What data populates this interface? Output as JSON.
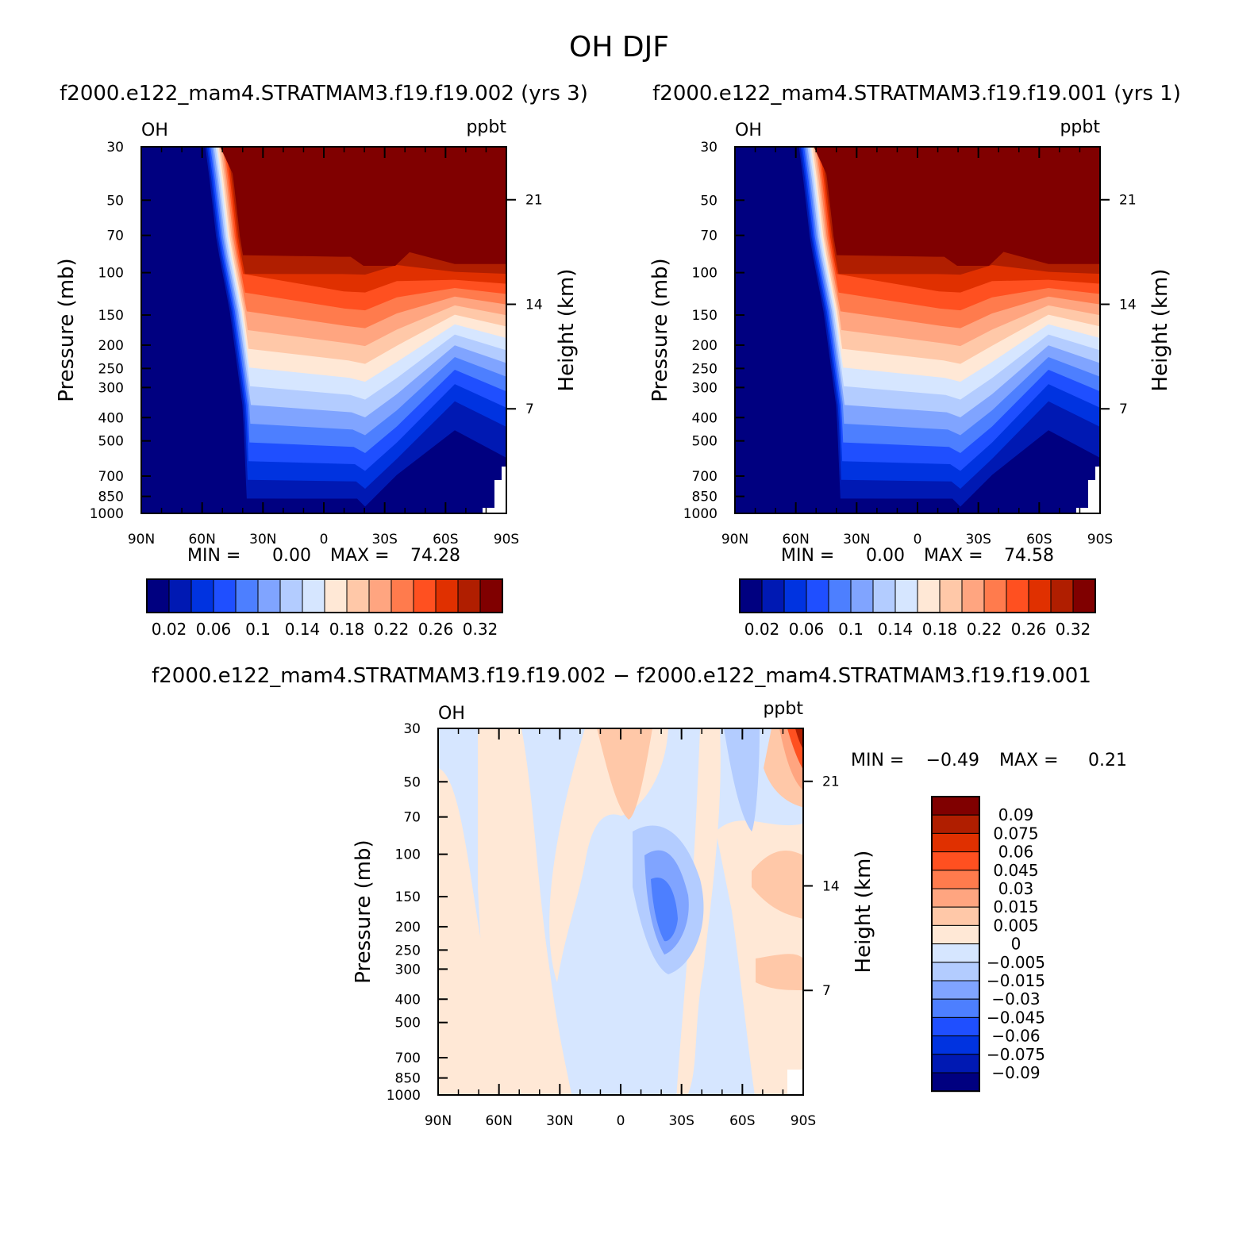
{
  "figure": {
    "main_title": "OH DJF",
    "panel1_title": "f2000.e122_mam4.STRATMAM3.f19.f19.002 (yrs 3)",
    "panel2_title": "f2000.e122_mam4.STRATMAM3.f19.f19.001 (yrs 1)",
    "diff_title": "f2000.e122_mam4.STRATMAM3.f19.f19.002 − f2000.e122_mam4.STRATMAM3.f19.f19.001"
  },
  "chart_data": [
    {
      "type": "heatmap",
      "id": "panel1",
      "variable_label": "OH",
      "units_label": "ppbt",
      "ylabel": "Pressure (mb)",
      "y2label": "Height (km)",
      "x_ticks": [
        "90N",
        "60N",
        "30N",
        "0",
        "30S",
        "60S",
        "90S"
      ],
      "x_values": [
        90,
        60,
        30,
        0,
        -30,
        -60,
        -90
      ],
      "y_ticks": [
        "30",
        "50",
        "70",
        "100",
        "150",
        "200",
        "250",
        "300",
        "400",
        "500",
        "700",
        "850",
        "1000"
      ],
      "y_values": [
        30,
        50,
        70,
        100,
        150,
        200,
        250,
        300,
        400,
        500,
        700,
        850,
        1000
      ],
      "height_ticks": [
        "21",
        "14",
        "7"
      ],
      "height_values": [
        21,
        14,
        7
      ],
      "min_label": "MIN =",
      "min_value": "0.00",
      "max_label": "MAX =",
      "max_value": "74.28",
      "colorbar_labels": [
        "0.02",
        "0.06",
        "0.1",
        "0.14",
        "0.18",
        "0.22",
        "0.26",
        "0.32"
      ]
    },
    {
      "type": "heatmap",
      "id": "panel2",
      "variable_label": "OH",
      "units_label": "ppbt",
      "ylabel": "Pressure (mb)",
      "y2label": "Height (km)",
      "x_ticks": [
        "90N",
        "60N",
        "30N",
        "0",
        "30S",
        "60S",
        "90S"
      ],
      "x_values": [
        90,
        60,
        30,
        0,
        -30,
        -60,
        -90
      ],
      "y_ticks": [
        "30",
        "50",
        "70",
        "100",
        "150",
        "200",
        "250",
        "300",
        "400",
        "500",
        "700",
        "850",
        "1000"
      ],
      "y_values": [
        30,
        50,
        70,
        100,
        150,
        200,
        250,
        300,
        400,
        500,
        700,
        850,
        1000
      ],
      "height_ticks": [
        "21",
        "14",
        "7"
      ],
      "height_values": [
        21,
        14,
        7
      ],
      "min_label": "MIN =",
      "min_value": "0.00",
      "max_label": "MAX =",
      "max_value": "74.58",
      "colorbar_labels": [
        "0.02",
        "0.06",
        "0.1",
        "0.14",
        "0.18",
        "0.22",
        "0.26",
        "0.32"
      ]
    },
    {
      "type": "heatmap",
      "id": "diff",
      "variable_label": "OH",
      "units_label": "ppbt",
      "ylabel": "Pressure (mb)",
      "y2label": "Height (km)",
      "x_ticks": [
        "90N",
        "60N",
        "30N",
        "0",
        "30S",
        "60S",
        "90S"
      ],
      "x_values": [
        90,
        60,
        30,
        0,
        -30,
        -60,
        -90
      ],
      "y_ticks": [
        "30",
        "50",
        "70",
        "100",
        "150",
        "200",
        "250",
        "300",
        "400",
        "500",
        "700",
        "850",
        "1000"
      ],
      "y_values": [
        30,
        50,
        70,
        100,
        150,
        200,
        250,
        300,
        400,
        500,
        700,
        850,
        1000
      ],
      "height_ticks": [
        "21",
        "14",
        "7"
      ],
      "height_values": [
        21,
        14,
        7
      ],
      "min_label": "MIN =",
      "min_value": "−0.49",
      "max_label": "MAX =",
      "max_value": "0.21",
      "colorbar_labels": [
        "0.09",
        "0.075",
        "0.06",
        "0.045",
        "0.03",
        "0.015",
        "0.005",
        "0",
        "−0.005",
        "−0.015",
        "−0.03",
        "−0.045",
        "−0.06",
        "−0.075",
        "−0.09"
      ]
    }
  ],
  "colors": {
    "abs_scale": [
      "#000080",
      "#0019b3",
      "#0033e0",
      "#1f4fff",
      "#4d7fff",
      "#80a4ff",
      "#b3ccff",
      "#d6e6ff",
      "#ffe8d6",
      "#ffc8a8",
      "#ffa580",
      "#ff7b4d",
      "#ff5020",
      "#e03000",
      "#b01e00",
      "#800000"
    ],
    "diff_scale": [
      "#800000",
      "#b01e00",
      "#e03000",
      "#ff5020",
      "#ff7b4d",
      "#ffa580",
      "#ffc8a8",
      "#ffe8d6",
      "#d6e6ff",
      "#b3ccff",
      "#80a4ff",
      "#4d7fff",
      "#1f4fff",
      "#0033e0",
      "#0019b3",
      "#000080"
    ]
  }
}
